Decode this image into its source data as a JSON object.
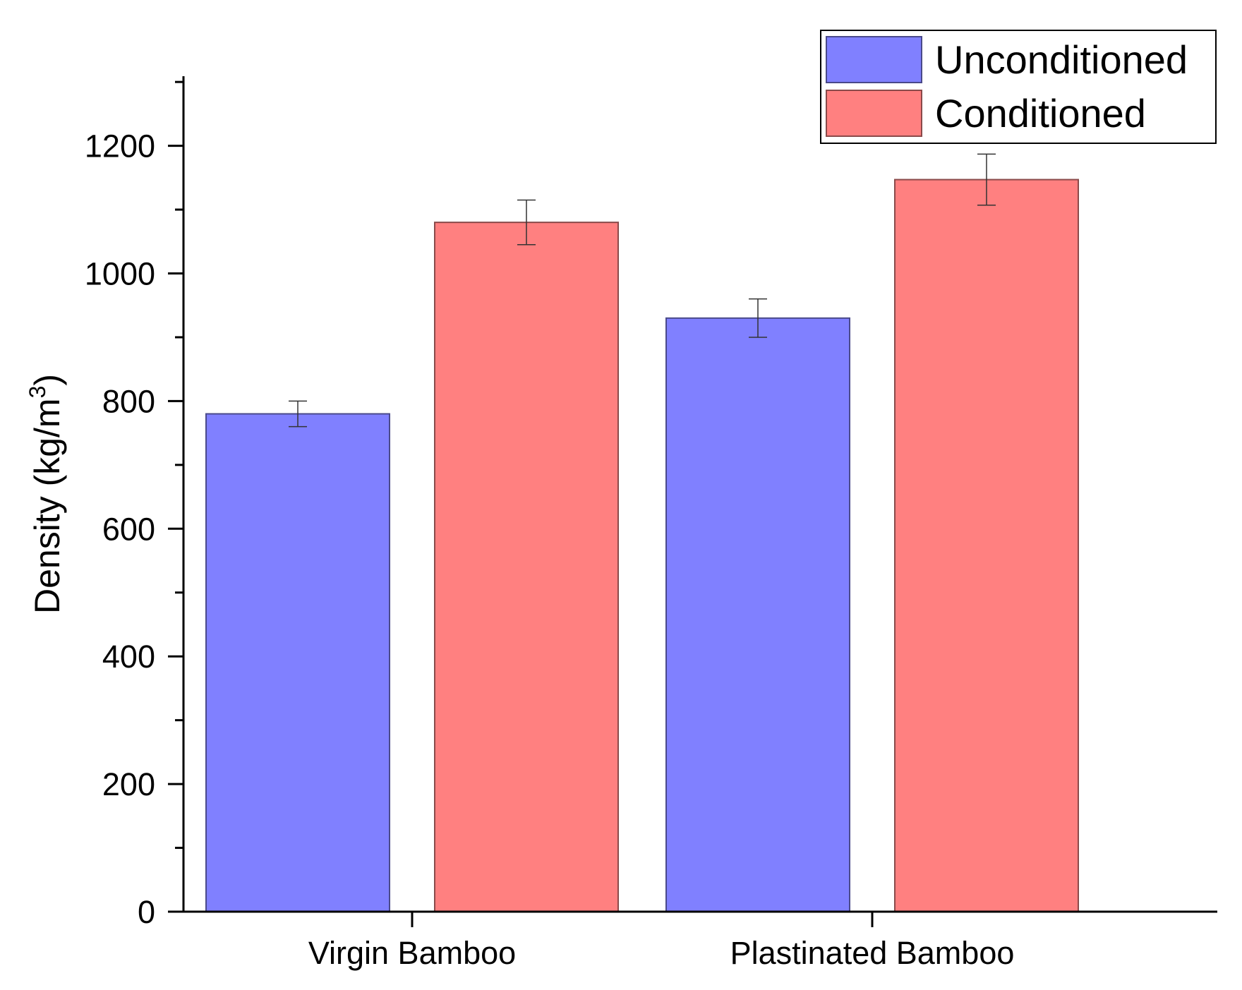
{
  "chart_data": {
    "type": "bar",
    "title": "",
    "xlabel": "",
    "ylabel": {
      "base": "Density (kg/m",
      "superscript": "3",
      "suffix": ")"
    },
    "ylim": [
      0,
      1300
    ],
    "yticks": [
      0,
      200,
      400,
      600,
      800,
      1000,
      1200
    ],
    "categories": [
      "Virgin Bamboo",
      "Plastinated Bamboo"
    ],
    "series": [
      {
        "name": "Unconditioned",
        "color": "#8080ff",
        "edge_color": "#4a4a8a",
        "values": [
          780,
          930
        ],
        "errors": [
          20,
          30
        ]
      },
      {
        "name": "Conditioned",
        "color": "#ff8080",
        "edge_color": "#8a4a4a",
        "values": [
          1080,
          1147
        ],
        "errors": [
          35,
          40
        ]
      }
    ],
    "legend_position": "top-right",
    "grid": false
  }
}
